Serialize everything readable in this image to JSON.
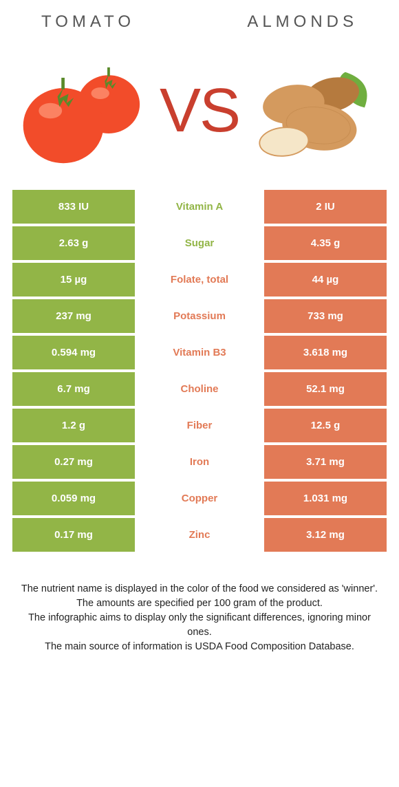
{
  "colors": {
    "left": "#92b547",
    "right": "#e27a56",
    "vs": "#c93f2e",
    "title": "#555555",
    "tomato_body": "#f24c2a",
    "tomato_shine": "#ff9a7a",
    "tomato_stem": "#5a8a2a",
    "almond_body": "#d49a5e",
    "almond_inner": "#f5e6c8",
    "almond_dark": "#b57a3e",
    "leaf": "#6fae3f"
  },
  "header": {
    "left": "Tomato",
    "right": "Almonds",
    "vs": "VS"
  },
  "rows": [
    {
      "left": "833 IU",
      "mid": "Vitamin A",
      "right": "2 IU",
      "winner": "left"
    },
    {
      "left": "2.63 g",
      "mid": "Sugar",
      "right": "4.35 g",
      "winner": "left"
    },
    {
      "left": "15 µg",
      "mid": "Folate, total",
      "right": "44 µg",
      "winner": "right"
    },
    {
      "left": "237 mg",
      "mid": "Potassium",
      "right": "733 mg",
      "winner": "right"
    },
    {
      "left": "0.594 mg",
      "mid": "Vitamin B3",
      "right": "3.618 mg",
      "winner": "right"
    },
    {
      "left": "6.7 mg",
      "mid": "Choline",
      "right": "52.1 mg",
      "winner": "right"
    },
    {
      "left": "1.2 g",
      "mid": "Fiber",
      "right": "12.5 g",
      "winner": "right"
    },
    {
      "left": "0.27 mg",
      "mid": "Iron",
      "right": "3.71 mg",
      "winner": "right"
    },
    {
      "left": "0.059 mg",
      "mid": "Copper",
      "right": "1.031 mg",
      "winner": "right"
    },
    {
      "left": "0.17 mg",
      "mid": "Zinc",
      "right": "3.12 mg",
      "winner": "right"
    }
  ],
  "footer": {
    "line1": "The nutrient name is displayed in the color of the food we considered as 'winner'.",
    "line2": "The amounts are specified per 100 gram of the product.",
    "line3": "The infographic aims to display only the significant differences, ignoring minor ones.",
    "line4": "The main source of information is USDA Food Composition Database."
  }
}
